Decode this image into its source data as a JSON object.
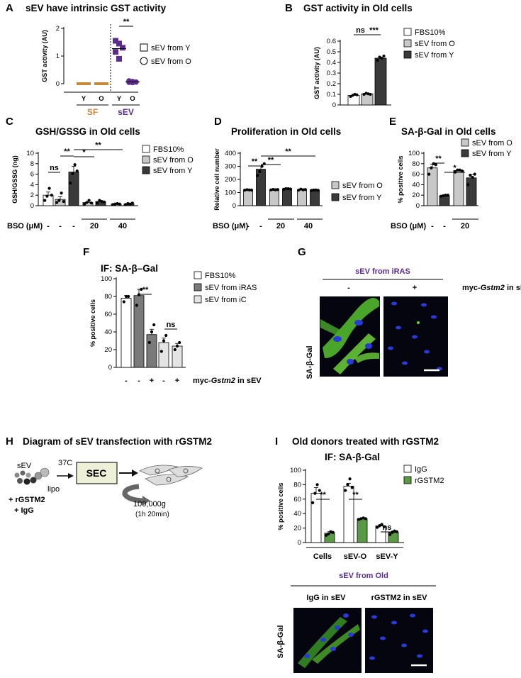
{
  "panels": [
    {
      "id": "A",
      "letter": "A",
      "title": "sEV have intrinsic GST activity"
    },
    {
      "id": "B",
      "letter": "B",
      "title": "GST activity in Old cells"
    },
    {
      "id": "C",
      "letter": "C",
      "title": "GSH/GSSG in Old cells"
    },
    {
      "id": "D",
      "letter": "D",
      "title": "Proliferation in Old cells"
    },
    {
      "id": "E",
      "letter": "E",
      "title": "SA-β-Gal in Old cells"
    },
    {
      "id": "F",
      "letter": "F",
      "title": "IF: SA-β–Gal"
    },
    {
      "id": "G",
      "letter": "G",
      "title": "sEV from iRAS"
    },
    {
      "id": "H",
      "letter": "H",
      "title": "Diagram of sEV transfection with rGSTM2"
    },
    {
      "id": "I",
      "letter": "I",
      "title": "Old donors treated with rGSTM2"
    }
  ],
  "colors": {
    "white": "#ffffff",
    "light": "#c8c8c8",
    "lighter": "#e4e4e4",
    "mid": "#7a7a7a",
    "dark": "#3a3a3a",
    "green": "#5a9a45",
    "purple": "#5b2d8e",
    "orange": "#c8893a",
    "scope_bg": "#050510",
    "nuclei": "#2a3ad8",
    "cells": "#6cd13a"
  },
  "chart_data": [
    {
      "panel": "A",
      "type": "scatter",
      "ylabel": "GST activity (AU)",
      "ylim": [
        0,
        2
      ],
      "yticks": [
        "0",
        "1",
        "2"
      ],
      "groups": [
        {
          "label": "SF",
          "categories": [
            "Y",
            "O"
          ],
          "color": "#c8893a"
        },
        {
          "label": "sEV",
          "categories": [
            "Y",
            "O"
          ],
          "color": "#5b2d8e"
        }
      ],
      "series": [
        {
          "name": "sEV from Y",
          "marker": "square",
          "group": "sEV",
          "category": "Y",
          "values": [
            1.55,
            1.45,
            1.3,
            1.15,
            0.9
          ]
        },
        {
          "name": "sEV from O",
          "marker": "circle",
          "group": "sEV",
          "category": "O",
          "values": [
            0.1,
            0.08,
            0.06,
            0.05,
            0.04
          ]
        }
      ],
      "sf_values": {
        "Y": [
          0,
          0,
          0,
          0,
          0
        ],
        "O": [
          0,
          0,
          0,
          0,
          0
        ]
      },
      "significance": [
        {
          "label": "**"
        }
      ]
    },
    {
      "panel": "B",
      "type": "bar",
      "ylabel": "GST activity (AU)",
      "ylim": [
        0,
        0.6
      ],
      "yticks": [
        "0",
        "0.1",
        "0.2",
        "0.3",
        "0.4",
        "0.5",
        "0.6"
      ],
      "categories": [
        "FBS10%",
        "sEV from O",
        "sEV from Y"
      ],
      "values": [
        0.09,
        0.105,
        0.44
      ],
      "errors": [
        0.008,
        0.01,
        0.015
      ],
      "points": [
        [
          0.08,
          0.09,
          0.1,
          0.095
        ],
        [
          0.1,
          0.11,
          0.105,
          0.1
        ],
        [
          0.42,
          0.45,
          0.44,
          0.46
        ]
      ],
      "significance": [
        {
          "label": "ns"
        },
        {
          "label": "***"
        }
      ]
    },
    {
      "panel": "C",
      "type": "bar",
      "ylabel": "GSH/GSSG (ng)",
      "ylim": [
        0,
        10
      ],
      "yticks": [
        "0",
        "2",
        "4",
        "6",
        "8",
        "10"
      ],
      "series": [
        {
          "name": "FBS10%"
        },
        {
          "name": "sEV from O"
        },
        {
          "name": "sEV from Y"
        }
      ],
      "bars": [
        {
          "s": 0,
          "v": 2.0,
          "e": 0.6,
          "pts": [
            1.0,
            1.8,
            3.3,
            2.0
          ]
        },
        {
          "s": 1,
          "v": 1.2,
          "e": 0.5,
          "pts": [
            0.6,
            1.0,
            2.4,
            0.8
          ]
        },
        {
          "s": 2,
          "v": 6.4,
          "e": 1.1,
          "pts": [
            4.3,
            6.1,
            7.8,
            6.6
          ]
        },
        {
          "s": 1,
          "v": 0.6,
          "e": 0.2,
          "pts": [
            0.3,
            0.6,
            1.0,
            0.5
          ]
        },
        {
          "s": 2,
          "v": 0.8,
          "e": 0.2,
          "pts": [
            0.5,
            1.0,
            0.8,
            0.7
          ]
        },
        {
          "s": 1,
          "v": 0.3,
          "e": 0.1,
          "pts": [
            0.2,
            0.3,
            0.4,
            0.3
          ]
        },
        {
          "s": 2,
          "v": 0.35,
          "e": 0.1,
          "pts": [
            0.2,
            0.4,
            0.3,
            0.5
          ]
        }
      ],
      "bso": {
        "label": "BSO (μM)",
        "values": [
          "-",
          "-",
          "-",
          "20",
          "40"
        ]
      },
      "significance": [
        {
          "label": "ns"
        },
        {
          "label": "**"
        },
        {
          "label": "*"
        },
        {
          "label": "**"
        }
      ]
    },
    {
      "panel": "D",
      "type": "bar",
      "ylabel": "Relative cell number",
      "ylim": [
        0,
        400
      ],
      "yticks": [
        "0",
        "100",
        "200",
        "300",
        "400"
      ],
      "series": [
        {
          "name": "sEV from O"
        },
        {
          "name": "sEV from Y"
        }
      ],
      "bars": [
        {
          "s": 0,
          "v": 120,
          "e": 3,
          "pts": [
            118,
            122,
            120,
            119
          ]
        },
        {
          "s": 1,
          "v": 278,
          "e": 25,
          "pts": [
            230,
            260,
            300,
            320
          ]
        },
        {
          "s": 0,
          "v": 122,
          "e": 2,
          "pts": [
            120,
            124,
            121,
            123
          ]
        },
        {
          "s": 1,
          "v": 128,
          "e": 3,
          "pts": [
            125,
            130,
            129,
            127
          ]
        },
        {
          "s": 0,
          "v": 122,
          "e": 4,
          "pts": [
            118,
            126,
            121,
            123
          ]
        },
        {
          "s": 1,
          "v": 118,
          "e": 2,
          "pts": [
            116,
            119,
            120,
            117
          ]
        }
      ],
      "bso": {
        "label": "BSO (μM)",
        "values": [
          "-",
          "-",
          "20",
          "40"
        ]
      },
      "significance": [
        {
          "label": "**"
        },
        {
          "label": "**"
        },
        {
          "label": "**"
        }
      ]
    },
    {
      "panel": "E",
      "type": "bar",
      "ylabel": "% positive cells",
      "ylim": [
        0,
        100
      ],
      "yticks": [
        "0",
        "20",
        "40",
        "60",
        "80",
        "100"
      ],
      "series": [
        {
          "name": "sEV from O"
        },
        {
          "name": "sEV from Y"
        }
      ],
      "bars": [
        {
          "s": 0,
          "v": 72,
          "e": 7,
          "pts": [
            60,
            72,
            80,
            78
          ]
        },
        {
          "s": 1,
          "v": 19,
          "e": 1,
          "pts": [
            18,
            19,
            20,
            20
          ]
        },
        {
          "s": 0,
          "v": 67,
          "e": 2,
          "pts": [
            64,
            68,
            68,
            66
          ]
        },
        {
          "s": 1,
          "v": 53,
          "e": 6,
          "pts": [
            40,
            58,
            54,
            60
          ]
        }
      ],
      "bso": {
        "label": "BSO (μM)",
        "values": [
          "-",
          "-",
          "20"
        ]
      },
      "significance": [
        {
          "label": "**"
        },
        {
          "label": "*"
        }
      ]
    },
    {
      "panel": "F",
      "type": "bar",
      "ylabel": "% positive cells",
      "ylim": [
        0,
        100
      ],
      "yticks": [
        "0",
        "20",
        "40",
        "60",
        "80",
        "100"
      ],
      "series": [
        {
          "name": "FBS10%"
        },
        {
          "name": "sEV from iRAS"
        },
        {
          "name": "sEV from iC"
        }
      ],
      "bars": [
        {
          "s": 0,
          "v": 78,
          "e": 3,
          "pts": [
            74,
            80,
            80
          ]
        },
        {
          "s": 1,
          "v": 81,
          "e": 7,
          "pts": [
            70,
            82,
            88
          ]
        },
        {
          "s": 1,
          "v": 37,
          "e": 6,
          "pts": [
            28,
            40,
            48
          ]
        },
        {
          "s": 2,
          "v": 28,
          "e": 5,
          "pts": [
            18,
            30,
            36
          ]
        },
        {
          "s": 2,
          "v": 24,
          "e": 3,
          "pts": [
            20,
            24,
            28
          ]
        }
      ],
      "xmarks": [
        "-",
        "-",
        "+",
        "-",
        "+"
      ],
      "xlabel_prefix": "myc-",
      "xlabel_gene": "Gstm2",
      "xlabel_suffix": " in sEV",
      "significance": [
        {
          "label": "**"
        },
        {
          "label": "ns"
        }
      ]
    },
    {
      "panel": "I",
      "type": "bar",
      "ylabel": "% positive cells",
      "ylim": [
        0,
        100
      ],
      "yticks": [
        "0",
        "20",
        "40",
        "60",
        "80",
        "100"
      ],
      "series": [
        {
          "name": "IgG"
        },
        {
          "name": "rGSTM2"
        }
      ],
      "categories": [
        "Cells",
        "sEV-O",
        "sEV-Y"
      ],
      "bars": [
        {
          "s": 0,
          "v": 68,
          "e": 8,
          "pts": [
            55,
            68,
            80,
            72
          ]
        },
        {
          "s": 1,
          "v": 13,
          "e": 2,
          "pts": [
            10,
            12,
            15,
            14
          ]
        },
        {
          "s": 0,
          "v": 78,
          "e": 4,
          "pts": [
            72,
            80,
            88,
            76
          ]
        },
        {
          "s": 1,
          "v": 33,
          "e": 1,
          "pts": [
            32,
            33,
            34,
            33
          ]
        },
        {
          "s": 0,
          "v": 23,
          "e": 2,
          "pts": [
            21,
            23,
            25,
            22
          ]
        },
        {
          "s": 1,
          "v": 14,
          "e": 2,
          "pts": [
            11,
            14,
            16,
            15
          ]
        }
      ],
      "significance": [
        {
          "label": "**"
        },
        {
          "label": "**"
        },
        {
          "label": "ns"
        }
      ]
    }
  ],
  "legends": {
    "A": [
      "sEV from Y",
      "sEV  from O"
    ],
    "B": [
      "FBS10%",
      "sEV from O",
      "sEV from Y"
    ],
    "C": [
      "FBS10%",
      "sEV from O",
      "sEV from Y"
    ],
    "D": [
      "sEV from O",
      "sEV from Y"
    ],
    "E": [
      "sEV from O",
      "sEV from Y"
    ],
    "F": [
      "FBS10%",
      "sEV from iRAS",
      "sEV from iC"
    ],
    "I": [
      "IgG",
      "rGSTM2"
    ]
  },
  "images": {
    "G": {
      "header": "sEV from iRAS",
      "cols": [
        "-",
        "+"
      ],
      "row_label": "SA-β-Gal",
      "right_prefix": "myc-",
      "right_gene": "Gstm2",
      "right_suffix": " in sEV"
    },
    "I": {
      "header": "sEV from Old",
      "cols": [
        "IgG in sEV",
        "rGSTM2 in sEV"
      ],
      "row_label": "SA-β-Gal",
      "subtitle": "IF: SA-β-Gal"
    }
  },
  "diagram": {
    "sev": "sEV",
    "lipo": "lipo",
    "temp": "37C",
    "sec": "SEC",
    "reagent1": "+ rGSTM2",
    "reagent2": "+ IgG",
    "speed": "100,000g",
    "time": "(1h 20min)"
  }
}
